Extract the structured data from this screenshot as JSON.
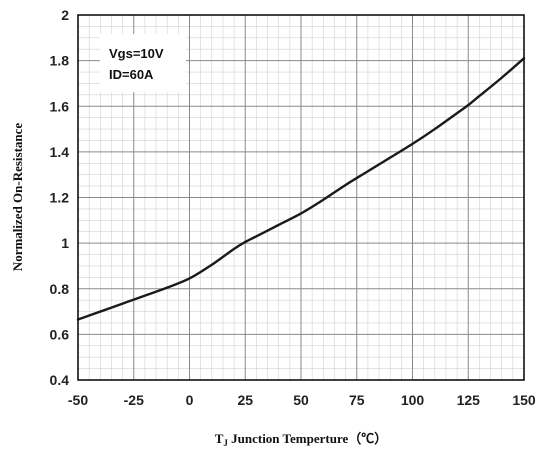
{
  "chart_data": {
    "type": "line",
    "title": "",
    "xlabel": "T",
    "xlabel_sub": "J",
    "xlabel_rest": " Junction Temperture（℃）",
    "ylabel": "Normalized On-Resistance",
    "xlim": [
      -50,
      150
    ],
    "ylim": [
      0.4,
      2
    ],
    "x_ticks": [
      "-50",
      "-25",
      "0",
      "25",
      "50",
      "75",
      "100",
      "125",
      "150"
    ],
    "y_ticks": [
      "0.4",
      "0.6",
      "0.8",
      "1",
      "1.2",
      "1.4",
      "1.6",
      "1.8",
      "2"
    ],
    "grid": true,
    "annotation": [
      "Vgs=10V",
      "ID=60A"
    ],
    "series": [
      {
        "x": [
          -50,
          -40,
          -30,
          -20,
          -10,
          0,
          10,
          20,
          25,
          30,
          40,
          50,
          60,
          70,
          80,
          90,
          100,
          110,
          120,
          125,
          130,
          140,
          150
        ],
        "values": [
          0.665,
          0.7,
          0.735,
          0.77,
          0.805,
          0.845,
          0.905,
          0.975,
          1.005,
          1.03,
          1.08,
          1.13,
          1.19,
          1.255,
          1.315,
          1.375,
          1.435,
          1.5,
          1.57,
          1.605,
          1.645,
          1.725,
          1.81
        ],
        "color": "#1a1a1a"
      }
    ]
  }
}
